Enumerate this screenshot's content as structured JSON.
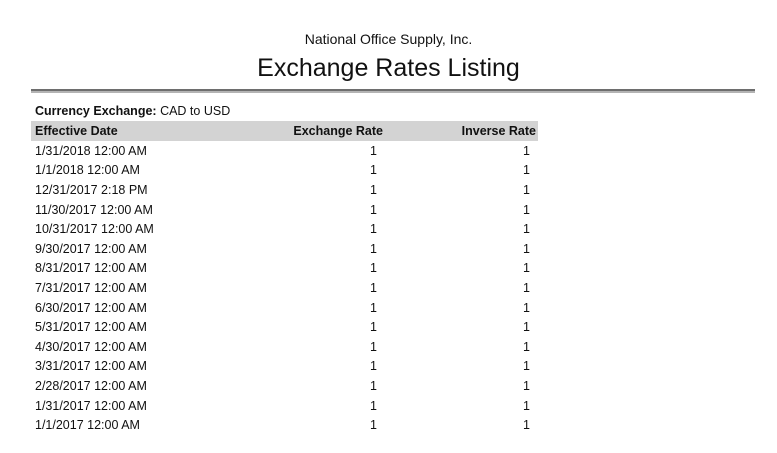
{
  "header": {
    "company": "National Office Supply, Inc.",
    "title": "Exchange Rates Listing"
  },
  "filter": {
    "label": "Currency Exchange:",
    "value": "CAD to USD"
  },
  "table": {
    "columns": [
      "Effective Date",
      "Exchange Rate",
      "Inverse Rate"
    ],
    "rows": [
      {
        "date": "1/31/2018 12:00 AM",
        "rate": "1",
        "inverse": "1"
      },
      {
        "date": "1/1/2018 12:00 AM",
        "rate": "1",
        "inverse": "1"
      },
      {
        "date": "12/31/2017 2:18 PM",
        "rate": "1",
        "inverse": "1"
      },
      {
        "date": "11/30/2017 12:00 AM",
        "rate": "1",
        "inverse": "1"
      },
      {
        "date": "10/31/2017 12:00 AM",
        "rate": "1",
        "inverse": "1"
      },
      {
        "date": "9/30/2017 12:00 AM",
        "rate": "1",
        "inverse": "1"
      },
      {
        "date": "8/31/2017 12:00 AM",
        "rate": "1",
        "inverse": "1"
      },
      {
        "date": "7/31/2017 12:00 AM",
        "rate": "1",
        "inverse": "1"
      },
      {
        "date": "6/30/2017 12:00 AM",
        "rate": "1",
        "inverse": "1"
      },
      {
        "date": "5/31/2017 12:00 AM",
        "rate": "1",
        "inverse": "1"
      },
      {
        "date": "4/30/2017 12:00 AM",
        "rate": "1",
        "inverse": "1"
      },
      {
        "date": "3/31/2017 12:00 AM",
        "rate": "1",
        "inverse": "1"
      },
      {
        "date": "2/28/2017 12:00 AM",
        "rate": "1",
        "inverse": "1"
      },
      {
        "date": "1/31/2017 12:00 AM",
        "rate": "1",
        "inverse": "1"
      },
      {
        "date": "1/1/2017 12:00 AM",
        "rate": "1",
        "inverse": "1"
      }
    ]
  },
  "colors": {
    "header_bg": "#d3d3d3",
    "rule_dark": "#6e6e6e",
    "rule_light": "#b4b4b4",
    "text": "#111111",
    "page_bg": "#ffffff"
  }
}
